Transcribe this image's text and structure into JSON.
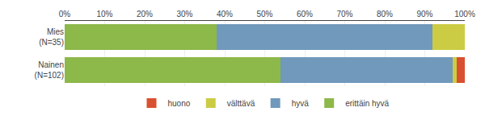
{
  "chart_data": {
    "type": "bar",
    "orientation": "horizontal",
    "stacked": true,
    "categories": [
      "Mies\n(N=35)",
      "Nainen\n(N=102)"
    ],
    "series": [
      {
        "name": "erittäin hyvä",
        "color": "#8DB84A",
        "values": [
          38,
          54
        ]
      },
      {
        "name": "hyvä",
        "color": "#7099BB",
        "values": [
          54,
          43
        ]
      },
      {
        "name": "välttävä",
        "color": "#CCCC44",
        "values": [
          8,
          1
        ]
      },
      {
        "name": "huono",
        "color": "#D95030",
        "values": [
          0,
          2
        ]
      }
    ],
    "xlim": [
      0,
      100
    ],
    "xticks": [
      {
        "value": 0,
        "label": "0%"
      },
      {
        "value": 10,
        "label": "10%"
      },
      {
        "value": 20,
        "label": "20%"
      },
      {
        "value": 30,
        "label": "30%"
      },
      {
        "value": 40,
        "label": "40%"
      },
      {
        "value": 50,
        "label": "50%"
      },
      {
        "value": 60,
        "label": "60%"
      },
      {
        "value": 70,
        "label": "70%"
      },
      {
        "value": 80,
        "label": "80%"
      },
      {
        "value": 90,
        "label": "90%"
      },
      {
        "value": 100,
        "label": "100%"
      }
    ],
    "grid": true,
    "legend": "bottom"
  }
}
